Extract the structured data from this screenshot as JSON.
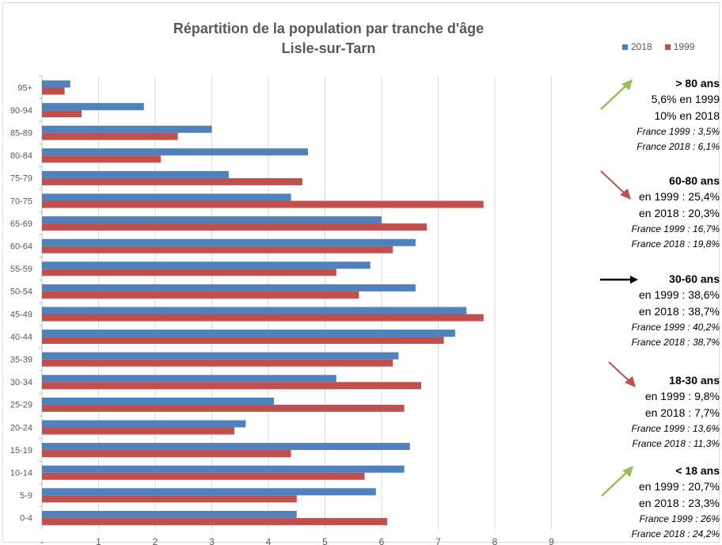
{
  "chart_data": {
    "type": "bar",
    "orientation": "horizontal",
    "title": "Répartition de la population par tranche d'âge",
    "subtitle": "Lisle-sur-Tarn",
    "categories": [
      "95+",
      "90-94",
      "85-89",
      "80-84",
      "75-79",
      "70-75",
      "65-69",
      "60-64",
      "55-59",
      "50-54",
      "45-49",
      "40-44",
      "35-39",
      "30-34",
      "25-29",
      "20-24",
      "15-19",
      "10-14",
      "5-9",
      "0-4"
    ],
    "series": [
      {
        "name": "2018",
        "color": "#4f81bd",
        "values": [
          0.5,
          1.8,
          3.0,
          4.7,
          3.3,
          4.4,
          6.0,
          6.6,
          5.8,
          6.6,
          7.5,
          7.3,
          6.3,
          5.2,
          4.1,
          3.6,
          6.5,
          6.4,
          5.9,
          4.5
        ]
      },
      {
        "name": "1999",
        "color": "#c0504d",
        "values": [
          0.4,
          0.7,
          2.4,
          2.1,
          4.6,
          7.8,
          6.8,
          6.2,
          5.2,
          5.6,
          7.8,
          7.1,
          6.2,
          6.7,
          6.4,
          3.4,
          4.4,
          5.7,
          4.5,
          6.1
        ]
      }
    ],
    "x_ticks": [
      "-",
      "1",
      "2",
      "3",
      "4",
      "5",
      "6",
      "7",
      "8",
      "9"
    ],
    "xlim": [
      0,
      9
    ],
    "grid": "vertical",
    "legend": "top-right"
  },
  "annotations": [
    {
      "header": "> 80 ans",
      "lines": [
        "5,6% en 1999",
        "10% en 2018"
      ],
      "france": [
        "France 1999 : 3,5%",
        "France 2018 : 6,1%"
      ],
      "trend": "up",
      "arrow_color": "#9bbb59"
    },
    {
      "header": "60-80 ans",
      "lines": [
        "en 1999 : 25,4%",
        "en 2018 : 20,3%"
      ],
      "france": [
        "France 1999 : 16,7%",
        "France 2018 : 19,8%"
      ],
      "trend": "down",
      "arrow_color": "#c0504d"
    },
    {
      "header": "30-60 ans",
      "lines": [
        "en 1999 : 38,6%",
        "en 2018 : 38,7%"
      ],
      "france": [
        "France 1999 : 40,2%",
        "France 2018 : 38,7%"
      ],
      "trend": "flat",
      "arrow_color": "#000000"
    },
    {
      "header": "18-30 ans",
      "lines": [
        "en 1999 : 9,8%",
        "en 2018 : 7,7%"
      ],
      "france": [
        "France 1999 : 13,6%",
        "France 2018 : 11,3%"
      ],
      "trend": "down",
      "arrow_color": "#c0504d"
    },
    {
      "header": "< 18 ans",
      "lines": [
        "en 1999 : 20,7%",
        "en 2018 : 23,3%"
      ],
      "france": [
        "France 1999 : 26%",
        "France 2018 : 24,2%"
      ],
      "trend": "up",
      "arrow_color": "#9bbb59"
    }
  ]
}
